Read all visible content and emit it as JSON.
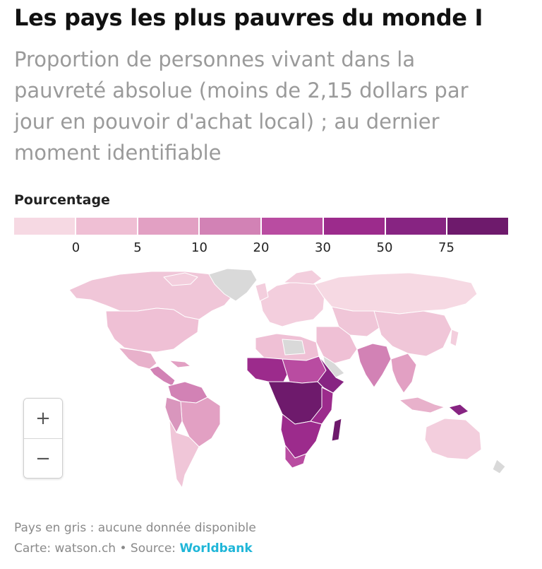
{
  "header": {
    "title": "Les pays les plus pauvres du monde I",
    "subtitle": "Proportion de personnes vivant dans la pauvreté absolue (moins de 2,15 dollars par jour en pouvoir d'achat local) ; au dernier moment identifiable"
  },
  "legend": {
    "title": "Pourcentage",
    "ticks": [
      "0",
      "5",
      "10",
      "20",
      "30",
      "50",
      "75"
    ],
    "colors": [
      "#f6d9e3",
      "#efbfd4",
      "#e2a0c3",
      "#d282b5",
      "#b94ca1",
      "#9c2b8c",
      "#872482",
      "#6e1a6c"
    ]
  },
  "map": {
    "no_data_color": "#d9d9d9",
    "border_color": "#ffffff"
  },
  "zoom": {
    "in_label": "+",
    "out_label": "−"
  },
  "footer": {
    "note": "Pays en gris : aucune donnée disponible",
    "credit_prefix": "Carte: watson.ch • Source: ",
    "source_link": "Worldbank"
  }
}
